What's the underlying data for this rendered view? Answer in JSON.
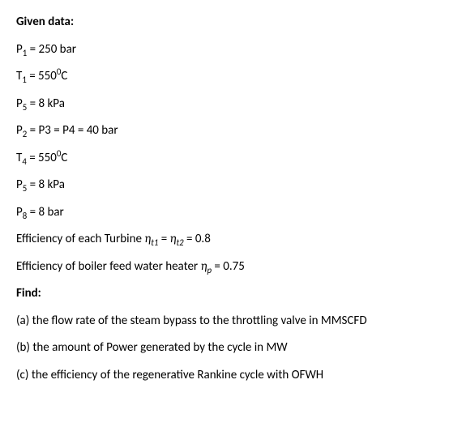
{
  "heading1": "Given data:",
  "p1": {
    "sym": "P",
    "sub": "1",
    "rest": " = 250 bar"
  },
  "t1": {
    "sym": "T",
    "sub": "1",
    "eq": " = 550",
    "sup": "0",
    "unit": "C"
  },
  "p5a": {
    "sym": "P",
    "sub": "5",
    "rest": " = 8 kPa"
  },
  "p234": {
    "s1": "P",
    "sub1": "2",
    "mid1": " = P3 = P4 = 40 bar"
  },
  "t4": {
    "sym": "T",
    "sub": "4",
    "eq": " = 550",
    "sup": "0",
    "unit": "C"
  },
  "p5b": {
    "sym": "P",
    "sub": "5",
    "rest": " = 8 kPa"
  },
  "p8": {
    "sym": "P",
    "sub": "8",
    "rest": " = 8 bar"
  },
  "effT": {
    "pre": "Efficiency of each Turbine ",
    "eta1": "η",
    "sub1": "t1",
    "mid": " = ",
    "eta2": "η",
    "sub2": "t2",
    "post": " = 0.8"
  },
  "effP": {
    "pre": "Efficiency of boiler feed water heater ",
    "eta": "η",
    "sub": "p",
    "post": " = 0.75"
  },
  "heading2": "Find:",
  "qa": "(a) the flow rate of the steam bypass to the throttling valve in MMSCFD",
  "qb": "(b) the amount of Power generated by the cycle in MW",
  "qc": "(c) the efficiency of the regenerative Rankine cycle with OFWH"
}
